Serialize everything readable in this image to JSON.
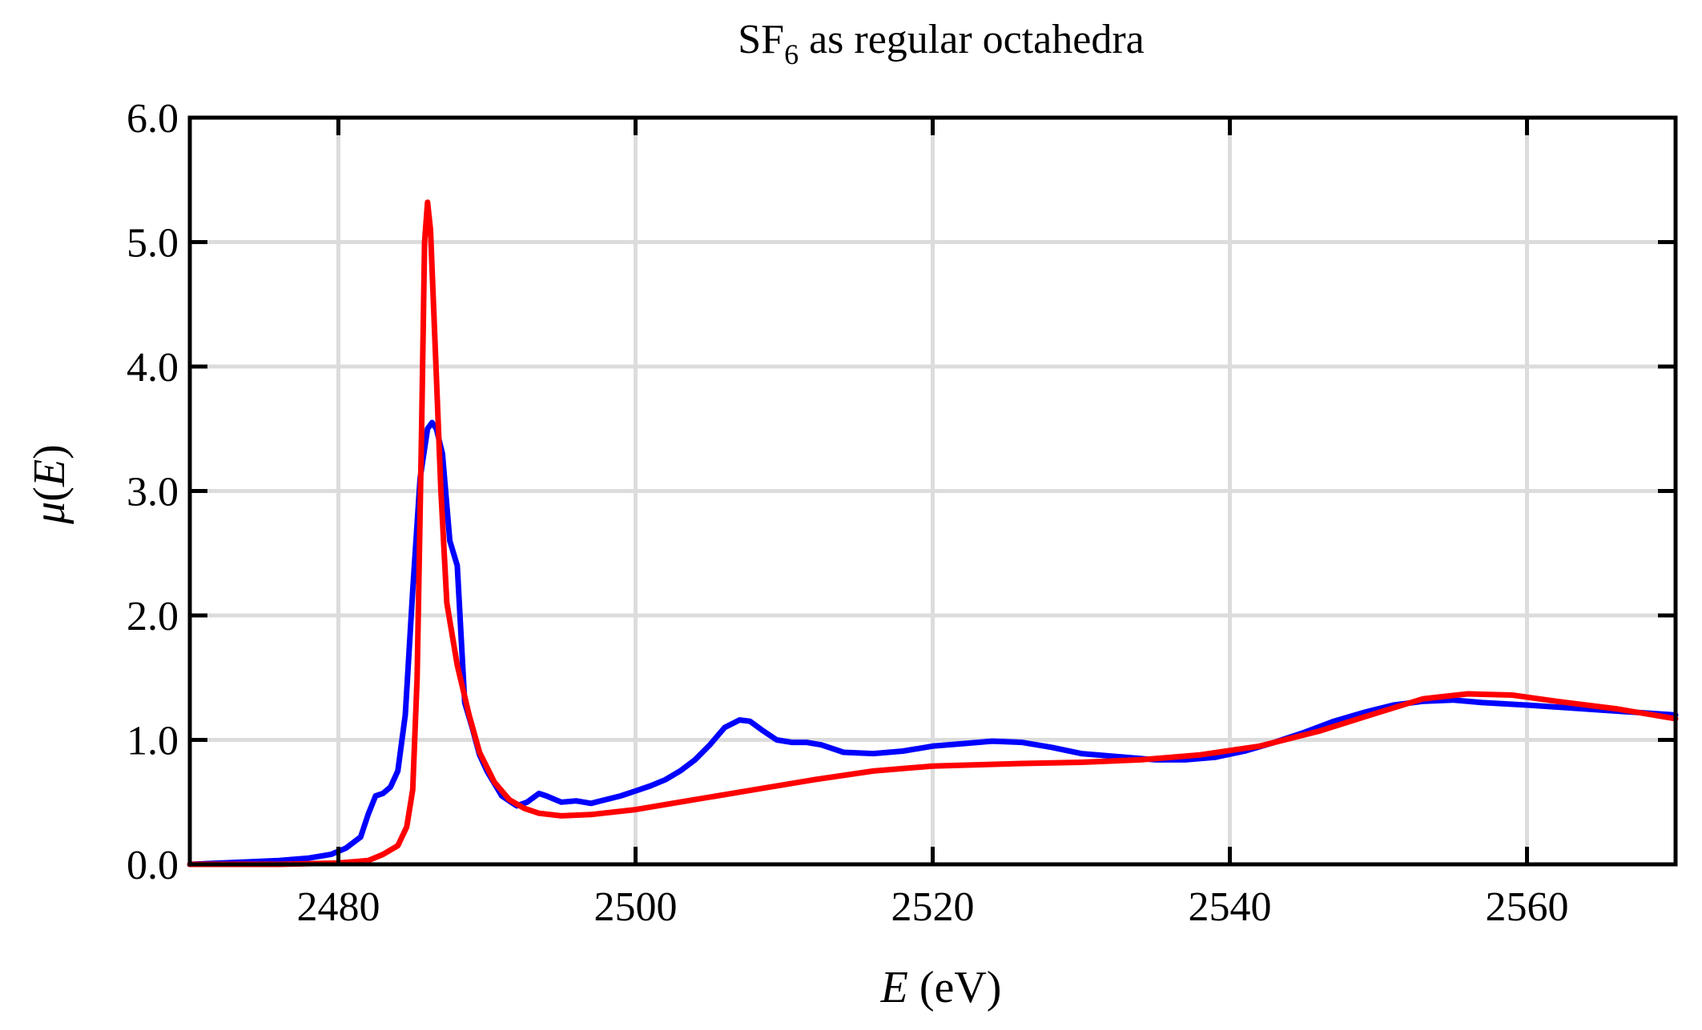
{
  "chart_data": {
    "type": "line",
    "title": {
      "main": "SF",
      "subscript": "6",
      "rest": " as regular octahedra"
    },
    "xlabel": {
      "var": "E",
      "unit": " (eV)"
    },
    "ylabel": {
      "var": "μ",
      "open": "(",
      "arg": "E",
      "close": ")"
    },
    "xlim": [
      2470,
      2570
    ],
    "ylim": [
      0,
      6
    ],
    "xticks": [
      2480,
      2500,
      2520,
      2540,
      2560
    ],
    "xtick_labels": [
      "2480",
      "2500",
      "2520",
      "2540",
      "2560"
    ],
    "yticks": [
      0,
      1,
      2,
      3,
      4,
      5,
      6
    ],
    "ytick_labels": [
      "0.0",
      "1.0",
      "2.0",
      "3.0",
      "4.0",
      "5.0",
      "6.0"
    ],
    "grid": true,
    "series": [
      {
        "color": "#0000ff",
        "x": [
          2470,
          2474,
          2476,
          2478,
          2479.5,
          2480.5,
          2481.5,
          2482,
          2482.5,
          2483,
          2483.5,
          2484,
          2484.5,
          2485,
          2485.5,
          2486,
          2486.3,
          2486.6,
          2487,
          2487.5,
          2488,
          2488.5,
          2489,
          2489.5,
          2490,
          2491,
          2492,
          2492.7,
          2493.5,
          2494,
          2495,
          2496,
          2497,
          2498,
          2499,
          2500,
          2501,
          2502,
          2503,
          2504,
          2505,
          2506,
          2507,
          2507.7,
          2508.5,
          2509.5,
          2510.5,
          2511.5,
          2512.5,
          2514,
          2516,
          2518,
          2520,
          2522,
          2524,
          2526,
          2528,
          2530,
          2533,
          2535,
          2537,
          2539,
          2541,
          2543,
          2545,
          2547,
          2549,
          2551,
          2553,
          2555,
          2557,
          2560,
          2565,
          2570
        ],
        "y": [
          0.0,
          0.02,
          0.03,
          0.05,
          0.08,
          0.13,
          0.22,
          0.4,
          0.55,
          0.57,
          0.62,
          0.75,
          1.2,
          2.2,
          3.1,
          3.5,
          3.55,
          3.5,
          3.3,
          2.6,
          2.4,
          1.3,
          1.1,
          0.88,
          0.75,
          0.55,
          0.47,
          0.5,
          0.57,
          0.55,
          0.5,
          0.51,
          0.49,
          0.52,
          0.55,
          0.59,
          0.63,
          0.68,
          0.75,
          0.84,
          0.96,
          1.1,
          1.16,
          1.15,
          1.08,
          1.0,
          0.98,
          0.98,
          0.96,
          0.9,
          0.89,
          0.91,
          0.95,
          0.97,
          0.99,
          0.98,
          0.94,
          0.89,
          0.86,
          0.84,
          0.84,
          0.86,
          0.91,
          0.98,
          1.06,
          1.15,
          1.22,
          1.28,
          1.31,
          1.32,
          1.3,
          1.28,
          1.24,
          1.2
        ]
      },
      {
        "color": "#ff0000",
        "x": [
          2470,
          2476,
          2480,
          2482,
          2483,
          2484,
          2484.6,
          2485,
          2485.3,
          2485.6,
          2485.8,
          2486,
          2486.2,
          2486.5,
          2486.9,
          2487.3,
          2488,
          2488.8,
          2489.5,
          2490.5,
          2491.5,
          2492.5,
          2493.5,
          2495,
          2497,
          2500,
          2504,
          2508,
          2512,
          2516,
          2520,
          2526,
          2530,
          2534,
          2538,
          2542,
          2546,
          2550,
          2553,
          2556,
          2559,
          2562,
          2566,
          2570
        ],
        "y": [
          0.0,
          0.0,
          0.01,
          0.03,
          0.08,
          0.15,
          0.3,
          0.6,
          1.5,
          3.5,
          5.0,
          5.32,
          5.1,
          4.2,
          3.0,
          2.1,
          1.6,
          1.2,
          0.9,
          0.66,
          0.52,
          0.45,
          0.41,
          0.39,
          0.4,
          0.44,
          0.52,
          0.6,
          0.68,
          0.75,
          0.79,
          0.81,
          0.82,
          0.84,
          0.88,
          0.95,
          1.07,
          1.22,
          1.33,
          1.37,
          1.36,
          1.31,
          1.25,
          1.17
        ]
      }
    ]
  }
}
